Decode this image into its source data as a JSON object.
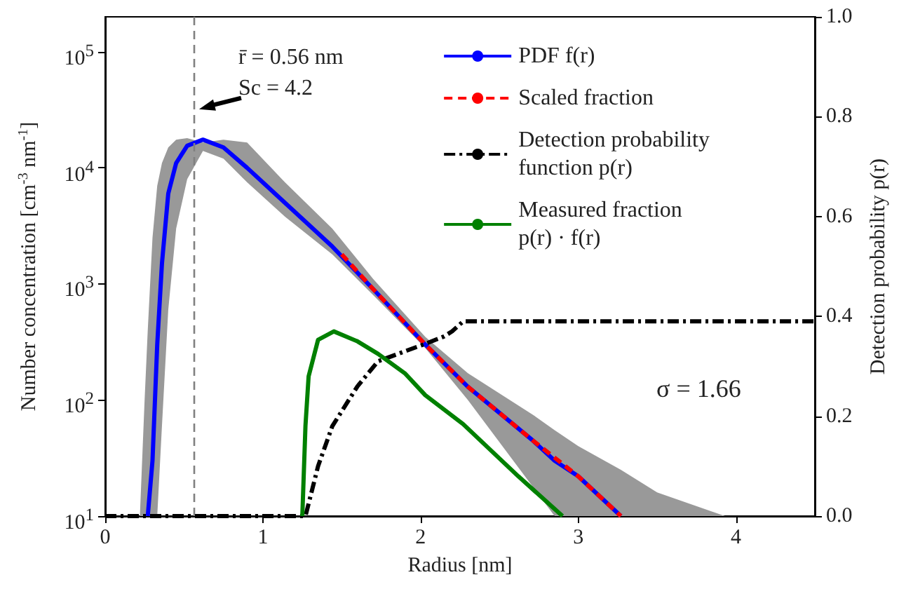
{
  "chart_data": {
    "type": "line",
    "xlabel": "Radius [nm]",
    "ylabel": "Number concentration [cm$^{-3}$ nm$^{-1}$]",
    "y2label": "Detection probability p(r)",
    "xlim": [
      0,
      4.5
    ],
    "xticks": [
      0,
      1,
      2,
      3,
      4
    ],
    "ylim": [
      10,
      200000
    ],
    "yticks": [
      {
        "value": 10,
        "label": "10$^{1}$"
      },
      {
        "value": 100,
        "label": "10$^{2}$"
      },
      {
        "value": 1000,
        "label": "10$^{3}$"
      },
      {
        "value": 10000,
        "label": "10$^{4}$"
      },
      {
        "value": 100000,
        "label": "10$^{5}$"
      }
    ],
    "y2lim": [
      0,
      1
    ],
    "y2ticks": [
      {
        "value": 0,
        "label": "0.0"
      },
      {
        "value": 0.2,
        "label": "0.2"
      },
      {
        "value": 0.4,
        "label": "0.4"
      },
      {
        "value": 0.6,
        "label": "0.6"
      },
      {
        "value": 0.8,
        "label": "0.8"
      },
      {
        "value": 1,
        "label": "1.0"
      }
    ],
    "log": "y",
    "grid": false,
    "legend": "top right",
    "marker": "none",
    "series": [
      {
        "name": "PDF f(r)",
        "color": "#0000ff",
        "line_style": "solid",
        "x": [
          0.22,
          0.25,
          0.27,
          0.3,
          0.33,
          0.36,
          0.4,
          0.45,
          0.52,
          0.62,
          0.75,
          0.9,
          1.14,
          1.44,
          1.7,
          2.03,
          2.3,
          2.71,
          2.85,
          3.0,
          3.27,
          3.5,
          3.93
        ],
        "values": [
          null,
          null,
          10,
          30,
          300,
          1500,
          6000,
          11000,
          15500,
          17500,
          15000,
          10000,
          5000,
          2100,
          900,
          300,
          130,
          45,
          30,
          22,
          10,
          null,
          null
        ],
        "lower": [
          10,
          10,
          10,
          10,
          10,
          60,
          600,
          3000,
          8000,
          14000,
          12000,
          7500,
          3800,
          1800,
          800,
          280,
          100,
          18,
          10,
          10,
          10,
          10,
          10
        ],
        "upper": [
          10,
          100,
          400,
          2500,
          7000,
          11000,
          15000,
          17500,
          18000,
          16500,
          17500,
          16500,
          7500,
          3000,
          1100,
          350,
          170,
          75,
          55,
          40,
          25,
          16,
          10
        ]
      },
      {
        "name": "Scaled fraction",
        "color": "#ff0000",
        "line_style": "dashed",
        "x": [
          1.5,
          1.7,
          2.03,
          2.3,
          2.71,
          3.0,
          3.27
        ],
        "values": [
          1800,
          900,
          300,
          130,
          45,
          22,
          10
        ]
      },
      {
        "name": "Detection probability\nfunction p(r)",
        "color": "#000000",
        "line_style": "dashdot",
        "axis": "y2",
        "x": [
          0,
          1.25,
          1.27,
          1.35,
          1.44,
          1.6,
          1.73,
          1.9,
          2.03,
          2.15,
          2.2,
          2.27,
          3.0,
          4.5
        ],
        "values": [
          0,
          0,
          0,
          0.1,
          0.18,
          0.26,
          0.31,
          0.33,
          0.345,
          0.36,
          0.37,
          0.39,
          0.39,
          0.39
        ]
      },
      {
        "name": "Measured fraction\np(r) · f(r)",
        "color": "#008000",
        "line_style": "solid",
        "x": [
          1.25,
          1.27,
          1.29,
          1.35,
          1.45,
          1.6,
          1.73,
          1.9,
          2.03,
          2.27,
          2.62,
          2.9
        ],
        "values": [
          10,
          60,
          160,
          330,
          390,
          320,
          250,
          170,
          110,
          62,
          22,
          10
        ]
      }
    ],
    "ref_lines": [
      {
        "axis": "x",
        "value": 0.56,
        "color": "#808080",
        "line_style": "dashed"
      }
    ],
    "annotations": [
      {
        "text": "r̄ = 0.56 nm\nSc = 4.2",
        "x": 0.56,
        "y": 32000
      },
      "σ = 1.66"
    ]
  }
}
